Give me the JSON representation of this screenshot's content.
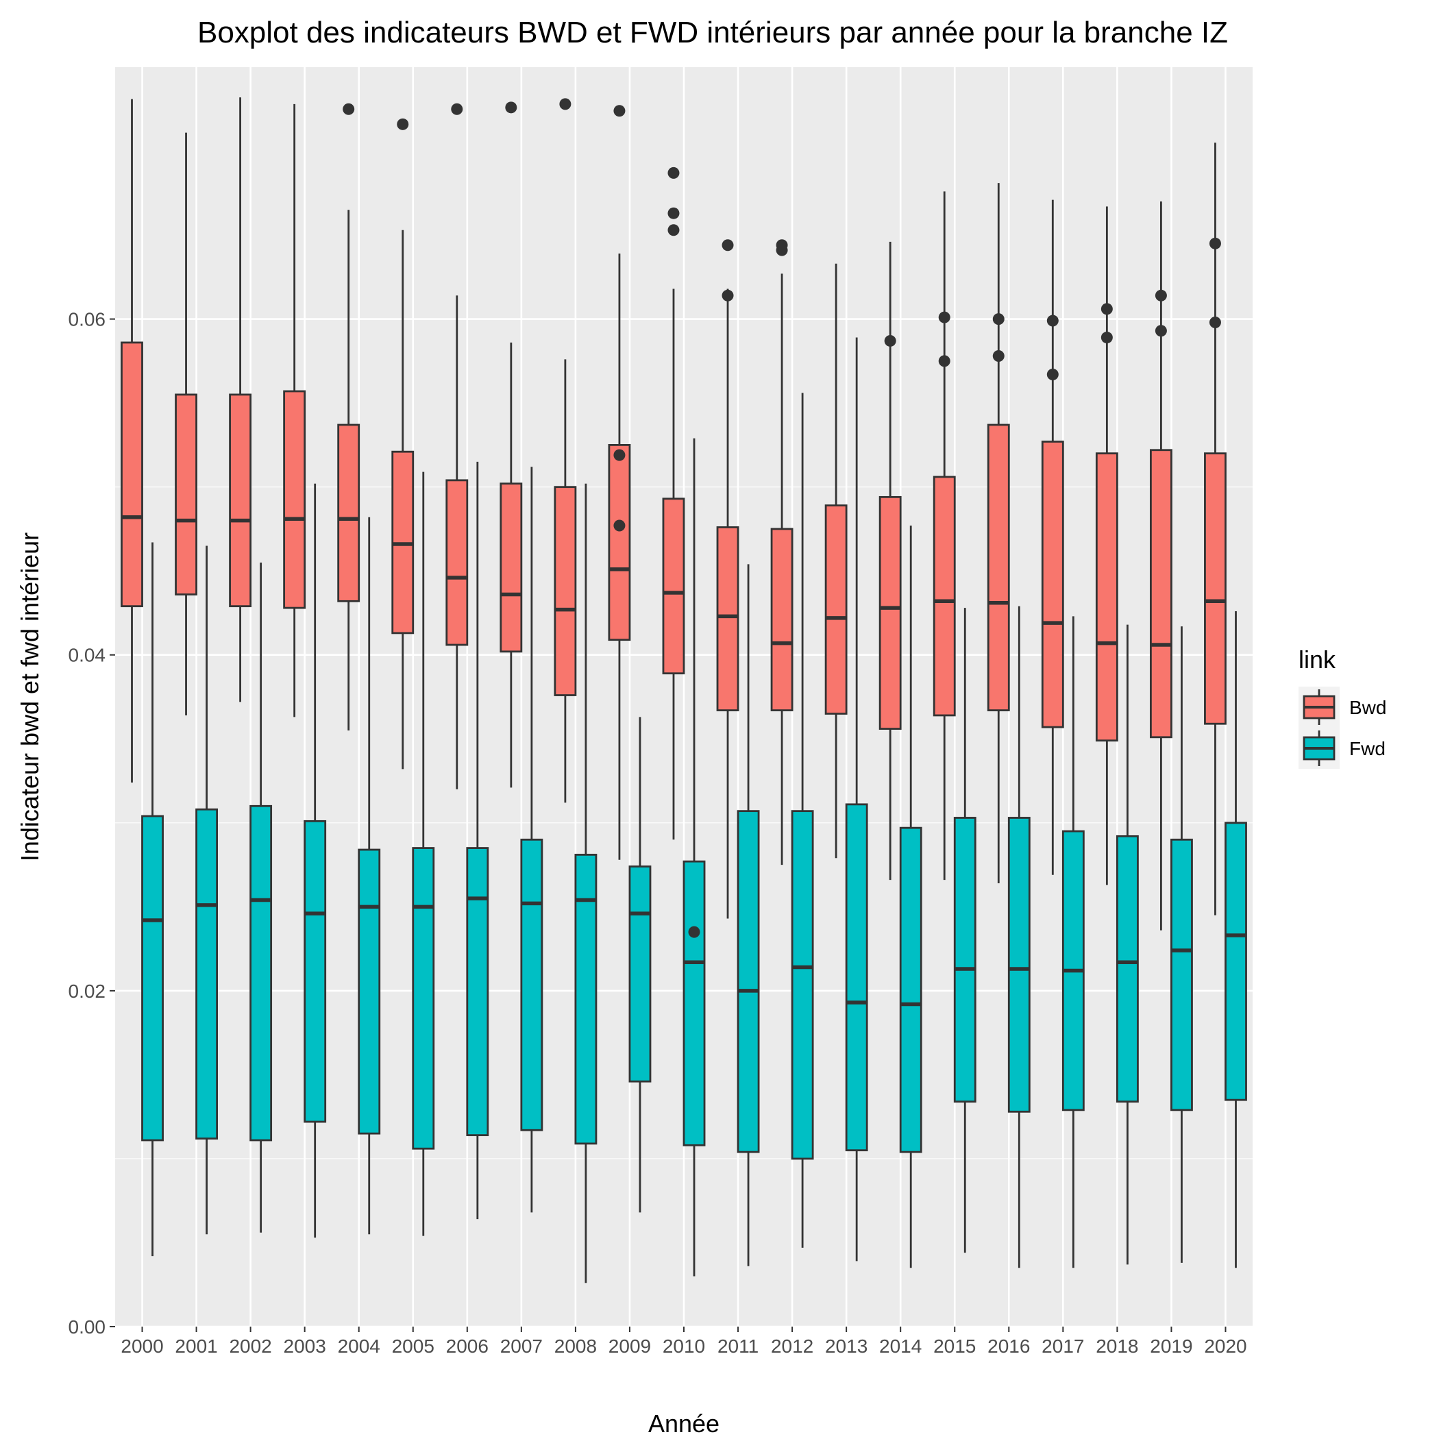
{
  "chart_data": {
    "type": "boxplot",
    "title": "Boxplot des indicateurs BWD et FWD intérieurs par année pour la branche IZ",
    "xlabel": "Année",
    "ylabel": "Indicateur bwd et fwd intérieur",
    "ylim": [
      0.0,
      0.075
    ],
    "y_ticks": [
      "0.00",
      "0.02",
      "0.04",
      "0.06"
    ],
    "y_tick_values": [
      0.0,
      0.02,
      0.04,
      0.06
    ],
    "grid": true,
    "legend": {
      "title": "link",
      "position": "right"
    },
    "categories": [
      "2000",
      "2001",
      "2002",
      "2003",
      "2004",
      "2005",
      "2006",
      "2007",
      "2008",
      "2009",
      "2010",
      "2011",
      "2012",
      "2013",
      "2014",
      "2015",
      "2016",
      "2017",
      "2018",
      "2019",
      "2020"
    ],
    "series": [
      {
        "name": "Bwd",
        "color": "#F8766D",
        "boxes": [
          {
            "min": 0.0324,
            "q1": 0.0429,
            "median": 0.0482,
            "q3": 0.0586,
            "max": 0.0731,
            "outliers": []
          },
          {
            "min": 0.0364,
            "q1": 0.0436,
            "median": 0.048,
            "q3": 0.0555,
            "max": 0.0711,
            "outliers": []
          },
          {
            "min": 0.0372,
            "q1": 0.0429,
            "median": 0.048,
            "q3": 0.0555,
            "max": 0.0732,
            "outliers": []
          },
          {
            "min": 0.0363,
            "q1": 0.0428,
            "median": 0.0481,
            "q3": 0.0557,
            "max": 0.0728,
            "outliers": []
          },
          {
            "min": 0.0355,
            "q1": 0.0432,
            "median": 0.0481,
            "q3": 0.0537,
            "max": 0.0665,
            "outliers": [
              0.0725
            ]
          },
          {
            "min": 0.0332,
            "q1": 0.0413,
            "median": 0.0466,
            "q3": 0.0521,
            "max": 0.0653,
            "outliers": [
              0.0716
            ]
          },
          {
            "min": 0.032,
            "q1": 0.0406,
            "median": 0.0446,
            "q3": 0.0504,
            "max": 0.0614,
            "outliers": [
              0.0725
            ]
          },
          {
            "min": 0.0321,
            "q1": 0.0402,
            "median": 0.0436,
            "q3": 0.0502,
            "max": 0.0586,
            "outliers": [
              0.0726
            ]
          },
          {
            "min": 0.0312,
            "q1": 0.0376,
            "median": 0.0427,
            "q3": 0.05,
            "max": 0.0576,
            "outliers": [
              0.0728
            ]
          },
          {
            "min": 0.0278,
            "q1": 0.0409,
            "median": 0.0451,
            "q3": 0.0525,
            "max": 0.0639,
            "outliers": [
              0.0724,
              0.0519,
              0.0477
            ]
          },
          {
            "min": 0.029,
            "q1": 0.0389,
            "median": 0.0437,
            "q3": 0.0493,
            "max": 0.0618,
            "outliers": [
              0.0687,
              0.0663,
              0.0653
            ]
          },
          {
            "min": 0.0243,
            "q1": 0.0367,
            "median": 0.0423,
            "q3": 0.0476,
            "max": 0.0618,
            "outliers": [
              0.0644,
              0.0614
            ]
          },
          {
            "min": 0.0275,
            "q1": 0.0367,
            "median": 0.0407,
            "q3": 0.0475,
            "max": 0.0627,
            "outliers": [
              0.0644,
              0.0641
            ]
          },
          {
            "min": 0.0279,
            "q1": 0.0365,
            "median": 0.0422,
            "q3": 0.0489,
            "max": 0.0633,
            "outliers": []
          },
          {
            "min": 0.0266,
            "q1": 0.0356,
            "median": 0.0428,
            "q3": 0.0494,
            "max": 0.0646,
            "outliers": [
              0.0587
            ]
          },
          {
            "min": 0.0266,
            "q1": 0.0364,
            "median": 0.0432,
            "q3": 0.0506,
            "max": 0.0676,
            "outliers": [
              0.0601,
              0.0575
            ]
          },
          {
            "min": 0.0264,
            "q1": 0.0367,
            "median": 0.0431,
            "q3": 0.0537,
            "max": 0.0681,
            "outliers": [
              0.06,
              0.0578
            ]
          },
          {
            "min": 0.0269,
            "q1": 0.0357,
            "median": 0.0419,
            "q3": 0.0527,
            "max": 0.0671,
            "outliers": [
              0.0599,
              0.0567
            ]
          },
          {
            "min": 0.0263,
            "q1": 0.0349,
            "median": 0.0407,
            "q3": 0.052,
            "max": 0.0667,
            "outliers": [
              0.0606,
              0.0589
            ]
          },
          {
            "min": 0.0236,
            "q1": 0.0351,
            "median": 0.0406,
            "q3": 0.0522,
            "max": 0.067,
            "outliers": [
              0.0614,
              0.0593
            ]
          },
          {
            "min": 0.0245,
            "q1": 0.0359,
            "median": 0.0432,
            "q3": 0.052,
            "max": 0.0705,
            "outliers": [
              0.0645,
              0.0598
            ]
          }
        ]
      },
      {
        "name": "Fwd",
        "color": "#00BFC4",
        "boxes": [
          {
            "min": 0.0042,
            "q1": 0.0111,
            "median": 0.0242,
            "q3": 0.0304,
            "max": 0.0467,
            "outliers": []
          },
          {
            "min": 0.0055,
            "q1": 0.0112,
            "median": 0.0251,
            "q3": 0.0308,
            "max": 0.0465,
            "outliers": []
          },
          {
            "min": 0.0056,
            "q1": 0.0111,
            "median": 0.0254,
            "q3": 0.031,
            "max": 0.0455,
            "outliers": []
          },
          {
            "min": 0.0053,
            "q1": 0.0122,
            "median": 0.0246,
            "q3": 0.0301,
            "max": 0.0502,
            "outliers": []
          },
          {
            "min": 0.0055,
            "q1": 0.0115,
            "median": 0.025,
            "q3": 0.0284,
            "max": 0.0482,
            "outliers": []
          },
          {
            "min": 0.0054,
            "q1": 0.0106,
            "median": 0.025,
            "q3": 0.0285,
            "max": 0.0509,
            "outliers": []
          },
          {
            "min": 0.0064,
            "q1": 0.0114,
            "median": 0.0255,
            "q3": 0.0285,
            "max": 0.0515,
            "outliers": []
          },
          {
            "min": 0.0068,
            "q1": 0.0117,
            "median": 0.0252,
            "q3": 0.029,
            "max": 0.0512,
            "outliers": []
          },
          {
            "min": 0.0026,
            "q1": 0.0109,
            "median": 0.0254,
            "q3": 0.0281,
            "max": 0.0502,
            "outliers": []
          },
          {
            "min": 0.0068,
            "q1": 0.0146,
            "median": 0.0246,
            "q3": 0.0274,
            "max": 0.0363,
            "outliers": []
          },
          {
            "min": 0.003,
            "q1": 0.0108,
            "median": 0.0217,
            "q3": 0.0277,
            "max": 0.0529,
            "outliers": [
              0.0235
            ]
          },
          {
            "min": 0.0036,
            "q1": 0.0104,
            "median": 0.02,
            "q3": 0.0307,
            "max": 0.0454,
            "outliers": []
          },
          {
            "min": 0.0047,
            "q1": 0.01,
            "median": 0.0214,
            "q3": 0.0307,
            "max": 0.0556,
            "outliers": []
          },
          {
            "min": 0.0039,
            "q1": 0.0105,
            "median": 0.0193,
            "q3": 0.0311,
            "max": 0.0589,
            "outliers": []
          },
          {
            "min": 0.0035,
            "q1": 0.0104,
            "median": 0.0192,
            "q3": 0.0297,
            "max": 0.0477,
            "outliers": []
          },
          {
            "min": 0.0044,
            "q1": 0.0134,
            "median": 0.0213,
            "q3": 0.0303,
            "max": 0.0428,
            "outliers": []
          },
          {
            "min": 0.0035,
            "q1": 0.0128,
            "median": 0.0213,
            "q3": 0.0303,
            "max": 0.0429,
            "outliers": []
          },
          {
            "min": 0.0035,
            "q1": 0.0129,
            "median": 0.0212,
            "q3": 0.0295,
            "max": 0.0423,
            "outliers": []
          },
          {
            "min": 0.0037,
            "q1": 0.0134,
            "median": 0.0217,
            "q3": 0.0292,
            "max": 0.0418,
            "outliers": []
          },
          {
            "min": 0.0038,
            "q1": 0.0129,
            "median": 0.0224,
            "q3": 0.029,
            "max": 0.0417,
            "outliers": []
          },
          {
            "min": 0.0035,
            "q1": 0.0135,
            "median": 0.0233,
            "q3": 0.03,
            "max": 0.0426,
            "outliers": []
          }
        ]
      }
    ]
  }
}
